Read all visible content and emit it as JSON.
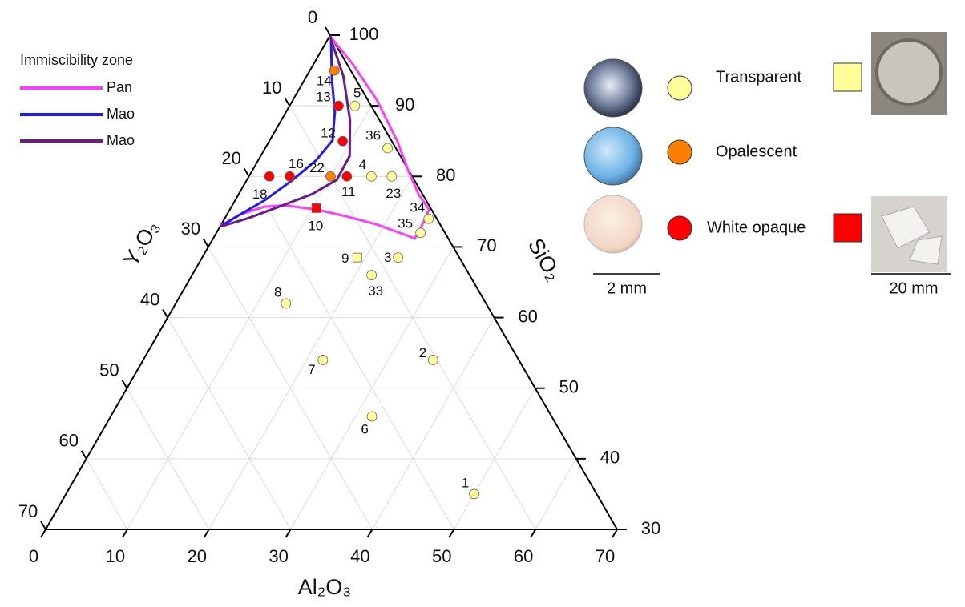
{
  "chart_data": {
    "type": "ternary",
    "axes": {
      "al2o3": "Al₂O₃",
      "y2o3": "Y₂O₃",
      "sio2": "SiO₂"
    },
    "al2o3lim": [
      0,
      70
    ],
    "y2o3lim": [
      0,
      70
    ],
    "sio2lim": [
      30,
      100
    ],
    "al2o3ticks": [
      0,
      10,
      20,
      30,
      40,
      50,
      60,
      70
    ],
    "y2o3ticks": [
      0,
      10,
      20,
      30,
      40,
      50,
      60,
      70
    ],
    "sio2ticks": [
      30,
      40,
      50,
      60,
      70,
      80,
      90,
      100
    ],
    "grid": true,
    "curves_title": "Immiscibility zone",
    "curves": [
      {
        "name": "Pan",
        "color": "#ff3cff",
        "al2o3": [
          0,
          1.6,
          4,
          6.4,
          10.6,
          14.5,
          19,
          23.2,
          24.7,
          24.7,
          24.4,
          22.1,
          19.3,
          15.6,
          10.3,
          4.8,
          0
        ],
        "sio2": [
          73,
          74.6,
          75.7,
          75.9,
          75.3,
          74.4,
          73.2,
          71.75,
          71.2,
          72.7,
          75.3,
          77.4,
          80.6,
          85.1,
          90.8,
          95.9,
          99.9
        ]
      },
      {
        "name": "Mao",
        "color": "#1a1aff",
        "al2o3": [
          0.35,
          3.4,
          6,
          7.7,
          7.1,
          5.6,
          3.6,
          1.6,
          0.06
        ],
        "sio2": [
          99.5,
          93.6,
          89.1,
          85.1,
          82.3,
          79.5,
          76.6,
          74.6,
          72.9
        ]
      },
      {
        "name": "Mao",
        "color": "#6a1a8a",
        "al2o3": [
          0,
          4.5,
          8.4,
          10.9,
          11,
          9,
          6,
          2.9,
          0.06
        ],
        "sio2": [
          99.9,
          94.2,
          88,
          82.9,
          79.5,
          77.5,
          75.8,
          74.1,
          72.9
        ]
      }
    ],
    "phases": [
      {
        "name": "Transparent",
        "color": "#ffff99"
      },
      {
        "name": "Opalescent",
        "color": "#ff8000"
      },
      {
        "name": "White opaque",
        "color": "#ff0000"
      }
    ],
    "scale_bars": [
      "2 mm",
      "20 mm"
    ],
    "points": [
      {
        "label": "14",
        "al2o3": 3,
        "sio2": 95,
        "phase": "Opalescent"
      },
      {
        "label": "13",
        "al2o3": 6,
        "sio2": 90,
        "phase": "White opaque"
      },
      {
        "label": "5",
        "al2o3": 8,
        "sio2": 90,
        "phase": "Transparent"
      },
      {
        "label": "12",
        "al2o3": 9,
        "sio2": 85,
        "phase": "White opaque"
      },
      {
        "label": "36",
        "al2o3": 15,
        "sio2": 84,
        "phase": "Transparent"
      },
      {
        "label": "4",
        "al2o3": 15,
        "sio2": 80,
        "phase": "Transparent"
      },
      {
        "label": "23",
        "al2o3": 17.5,
        "sio2": 80,
        "phase": "Transparent"
      },
      {
        "label": "16",
        "al2o3": 5,
        "sio2": 80,
        "phase": "White opaque"
      },
      {
        "label": "18",
        "al2o3": 2.5,
        "sio2": 80,
        "phase": "White opaque"
      },
      {
        "label": "22",
        "al2o3": 10,
        "sio2": 80,
        "phase": "Opalescent"
      },
      {
        "label": "11",
        "al2o3": 12,
        "sio2": 80,
        "phase": "White opaque"
      },
      {
        "label": "34",
        "al2o3": 25,
        "sio2": 74,
        "phase": "Transparent"
      },
      {
        "label": "35",
        "al2o3": 25,
        "sio2": 72,
        "phase": "Transparent"
      },
      {
        "label": "10",
        "al2o3": 10.5,
        "sio2": 75.5,
        "phase": "White opaque",
        "shape": "square"
      },
      {
        "label": "9",
        "al2o3": 19,
        "sio2": 68.5,
        "phase": "Transparent",
        "shape": "square"
      },
      {
        "label": "3",
        "al2o3": 24,
        "sio2": 68.5,
        "phase": "Transparent"
      },
      {
        "label": "33",
        "al2o3": 22,
        "sio2": 66,
        "phase": "Transparent"
      },
      {
        "label": "8",
        "al2o3": 13.5,
        "sio2": 62,
        "phase": "Transparent"
      },
      {
        "label": "7",
        "al2o3": 22,
        "sio2": 54,
        "phase": "Transparent"
      },
      {
        "label": "2",
        "al2o3": 35.5,
        "sio2": 54,
        "phase": "Transparent"
      },
      {
        "label": "6",
        "al2o3": 32,
        "sio2": 46,
        "phase": "Transparent"
      },
      {
        "label": "1",
        "al2o3": 50,
        "sio2": 35,
        "phase": "Transparent"
      }
    ]
  }
}
